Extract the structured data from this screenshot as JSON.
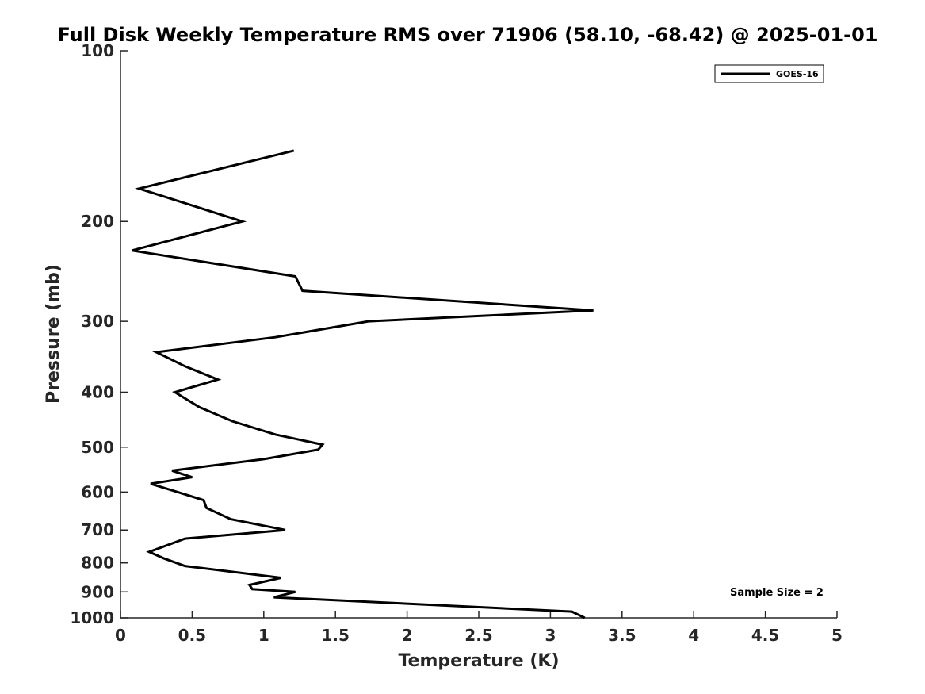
{
  "chart_data": {
    "type": "line",
    "title": "Full Disk Weekly Temperature RMS over 71906 (58.10, -68.42) @ 2025-01-01",
    "xlabel": "Temperature (K)",
    "ylabel": "Pressure (mb)",
    "xlim": [
      0,
      5
    ],
    "ylim": [
      100,
      1000
    ],
    "yscale": "log",
    "yreversed": true,
    "xticks": [
      0,
      0.5,
      1,
      1.5,
      2,
      2.5,
      3,
      3.5,
      4,
      4.5,
      5
    ],
    "xtick_labels": [
      "0",
      "0.5",
      "1",
      "1.5",
      "2",
      "2.5",
      "3",
      "3.5",
      "4",
      "4.5",
      "5"
    ],
    "yticks": [
      100,
      200,
      300,
      400,
      500,
      600,
      700,
      800,
      900,
      1000
    ],
    "ytick_labels": [
      "100",
      "200",
      "300",
      "400",
      "500",
      "600",
      "700",
      "800",
      "900",
      "1000"
    ],
    "grid": false,
    "legend_position": "top-right",
    "series": [
      {
        "name": "GOES-16",
        "color": "#000000",
        "points": [
          {
            "x": 1.21,
            "p": 150
          },
          {
            "x": 0.13,
            "p": 175
          },
          {
            "x": 0.85,
            "p": 200
          },
          {
            "x": 0.08,
            "p": 225
          },
          {
            "x": 1.22,
            "p": 250
          },
          {
            "x": 1.27,
            "p": 265
          },
          {
            "x": 3.3,
            "p": 287
          },
          {
            "x": 1.73,
            "p": 300
          },
          {
            "x": 1.08,
            "p": 320
          },
          {
            "x": 0.25,
            "p": 340
          },
          {
            "x": 0.45,
            "p": 360
          },
          {
            "x": 0.68,
            "p": 380
          },
          {
            "x": 0.38,
            "p": 400
          },
          {
            "x": 0.55,
            "p": 425
          },
          {
            "x": 0.78,
            "p": 450
          },
          {
            "x": 1.08,
            "p": 475
          },
          {
            "x": 1.41,
            "p": 495
          },
          {
            "x": 1.38,
            "p": 505
          },
          {
            "x": 1.0,
            "p": 525
          },
          {
            "x": 0.36,
            "p": 550
          },
          {
            "x": 0.5,
            "p": 565
          },
          {
            "x": 0.21,
            "p": 580
          },
          {
            "x": 0.4,
            "p": 600
          },
          {
            "x": 0.58,
            "p": 620
          },
          {
            "x": 0.6,
            "p": 640
          },
          {
            "x": 0.77,
            "p": 670
          },
          {
            "x": 1.15,
            "p": 700
          },
          {
            "x": 0.45,
            "p": 725
          },
          {
            "x": 0.2,
            "p": 765
          },
          {
            "x": 0.3,
            "p": 785
          },
          {
            "x": 0.45,
            "p": 810
          },
          {
            "x": 1.12,
            "p": 850
          },
          {
            "x": 0.9,
            "p": 875
          },
          {
            "x": 0.92,
            "p": 890
          },
          {
            "x": 1.22,
            "p": 900
          },
          {
            "x": 1.07,
            "p": 920
          },
          {
            "x": 3.15,
            "p": 975
          },
          {
            "x": 3.24,
            "p": 1000
          }
        ]
      }
    ],
    "annotations": [
      {
        "text": "Sample Size = 2"
      }
    ]
  }
}
